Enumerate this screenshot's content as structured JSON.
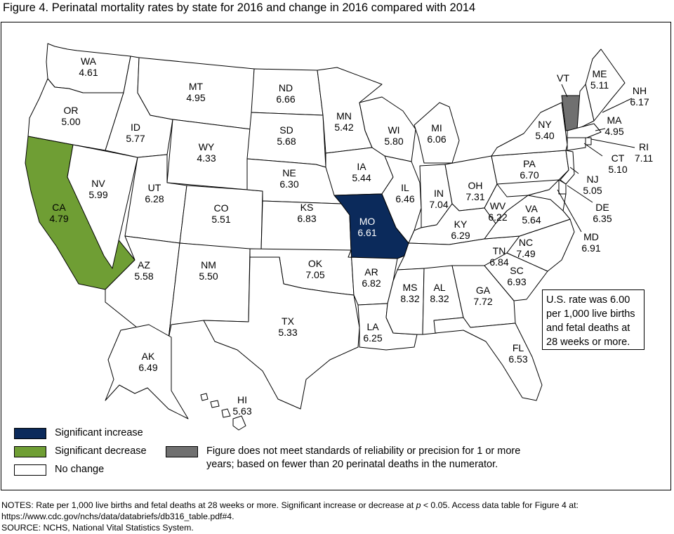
{
  "title": "Figure 4. Perinatal mortality rates by state for 2016 and change in 2016 compared with 2014",
  "colors": {
    "increase": "#0b2a5b",
    "decrease": "#6f9e34",
    "unreliable": "#707070",
    "no_change": "#ffffff"
  },
  "states": [
    {
      "abbr": "WA",
      "value": "4.61",
      "status": "no_change"
    },
    {
      "abbr": "OR",
      "value": "5.00",
      "status": "no_change"
    },
    {
      "abbr": "CA",
      "value": "4.79",
      "status": "decrease"
    },
    {
      "abbr": "NV",
      "value": "5.99",
      "status": "no_change"
    },
    {
      "abbr": "ID",
      "value": "5.77",
      "status": "no_change"
    },
    {
      "abbr": "MT",
      "value": "4.95",
      "status": "no_change"
    },
    {
      "abbr": "WY",
      "value": "4.33",
      "status": "no_change"
    },
    {
      "abbr": "UT",
      "value": "6.28",
      "status": "no_change"
    },
    {
      "abbr": "AZ",
      "value": "5.58",
      "status": "no_change"
    },
    {
      "abbr": "CO",
      "value": "5.51",
      "status": "no_change"
    },
    {
      "abbr": "NM",
      "value": "5.50",
      "status": "no_change"
    },
    {
      "abbr": "ND",
      "value": "6.66",
      "status": "no_change"
    },
    {
      "abbr": "SD",
      "value": "5.68",
      "status": "no_change"
    },
    {
      "abbr": "NE",
      "value": "6.30",
      "status": "no_change"
    },
    {
      "abbr": "KS",
      "value": "6.83",
      "status": "no_change"
    },
    {
      "abbr": "OK",
      "value": "7.05",
      "status": "no_change"
    },
    {
      "abbr": "TX",
      "value": "5.33",
      "status": "no_change"
    },
    {
      "abbr": "MN",
      "value": "5.42",
      "status": "no_change"
    },
    {
      "abbr": "IA",
      "value": "5.44",
      "status": "no_change"
    },
    {
      "abbr": "MO",
      "value": "6.61",
      "status": "increase"
    },
    {
      "abbr": "AR",
      "value": "6.82",
      "status": "no_change"
    },
    {
      "abbr": "LA",
      "value": "6.25",
      "status": "no_change"
    },
    {
      "abbr": "WI",
      "value": "5.80",
      "status": "no_change"
    },
    {
      "abbr": "IL",
      "value": "6.46",
      "status": "no_change"
    },
    {
      "abbr": "MI",
      "value": "6.06",
      "status": "no_change"
    },
    {
      "abbr": "IN",
      "value": "7.04",
      "status": "no_change"
    },
    {
      "abbr": "OH",
      "value": "7.31",
      "status": "no_change"
    },
    {
      "abbr": "KY",
      "value": "6.29",
      "status": "no_change"
    },
    {
      "abbr": "TN",
      "value": "6.84",
      "status": "no_change"
    },
    {
      "abbr": "MS",
      "value": "8.32",
      "status": "no_change"
    },
    {
      "abbr": "AL",
      "value": "8.32",
      "status": "no_change"
    },
    {
      "abbr": "GA",
      "value": "7.72",
      "status": "no_change"
    },
    {
      "abbr": "FL",
      "value": "6.53",
      "status": "no_change"
    },
    {
      "abbr": "SC",
      "value": "6.93",
      "status": "no_change"
    },
    {
      "abbr": "NC",
      "value": "7.49",
      "status": "no_change"
    },
    {
      "abbr": "VA",
      "value": "5.64",
      "status": "no_change"
    },
    {
      "abbr": "WV",
      "value": "6.22",
      "status": "no_change"
    },
    {
      "abbr": "PA",
      "value": "6.70",
      "status": "no_change"
    },
    {
      "abbr": "NY",
      "value": "5.40",
      "status": "no_change"
    },
    {
      "abbr": "VT",
      "value": "",
      "status": "unreliable"
    },
    {
      "abbr": "ME",
      "value": "5.11",
      "status": "no_change"
    },
    {
      "abbr": "NH",
      "value": "6.17",
      "status": "no_change"
    },
    {
      "abbr": "MA",
      "value": "4.95",
      "status": "no_change"
    },
    {
      "abbr": "RI",
      "value": "7.11",
      "status": "no_change"
    },
    {
      "abbr": "CT",
      "value": "5.10",
      "status": "no_change"
    },
    {
      "abbr": "NJ",
      "value": "5.05",
      "status": "no_change"
    },
    {
      "abbr": "DE",
      "value": "6.35",
      "status": "no_change"
    },
    {
      "abbr": "MD",
      "value": "6.91",
      "status": "no_change"
    },
    {
      "abbr": "AK",
      "value": "6.49",
      "status": "no_change"
    },
    {
      "abbr": "HI",
      "value": "5.63",
      "status": "no_change"
    }
  ],
  "us_rate_note": {
    "line1": "U.S. rate was 6.00",
    "line2": "per 1,000 live births",
    "line3": "and fetal deaths at",
    "line4": "28 weeks or more."
  },
  "legend": {
    "increase": "Significant increase",
    "decrease": "Significant decrease",
    "no_change": "No change",
    "unreliable_line1": "Figure does not meet standards of reliability or precision for 1 or more",
    "unreliable_line2": "years; based on fewer than 20 perinatal deaths in the numerator."
  },
  "notes": {
    "line1_pre": "NOTES: Rate per 1,000 live births and fetal deaths at 28 weeks or more. Significant increase or decrease at ",
    "line1_p": "p",
    "line1_post": " < 0.05. Access data table for Figure 4 at:",
    "line2": "https://www.cdc.gov/nchs/data/databriefs/db316_table.pdf#4.",
    "line3": "SOURCE: NCHS, National Vital Statistics System."
  }
}
